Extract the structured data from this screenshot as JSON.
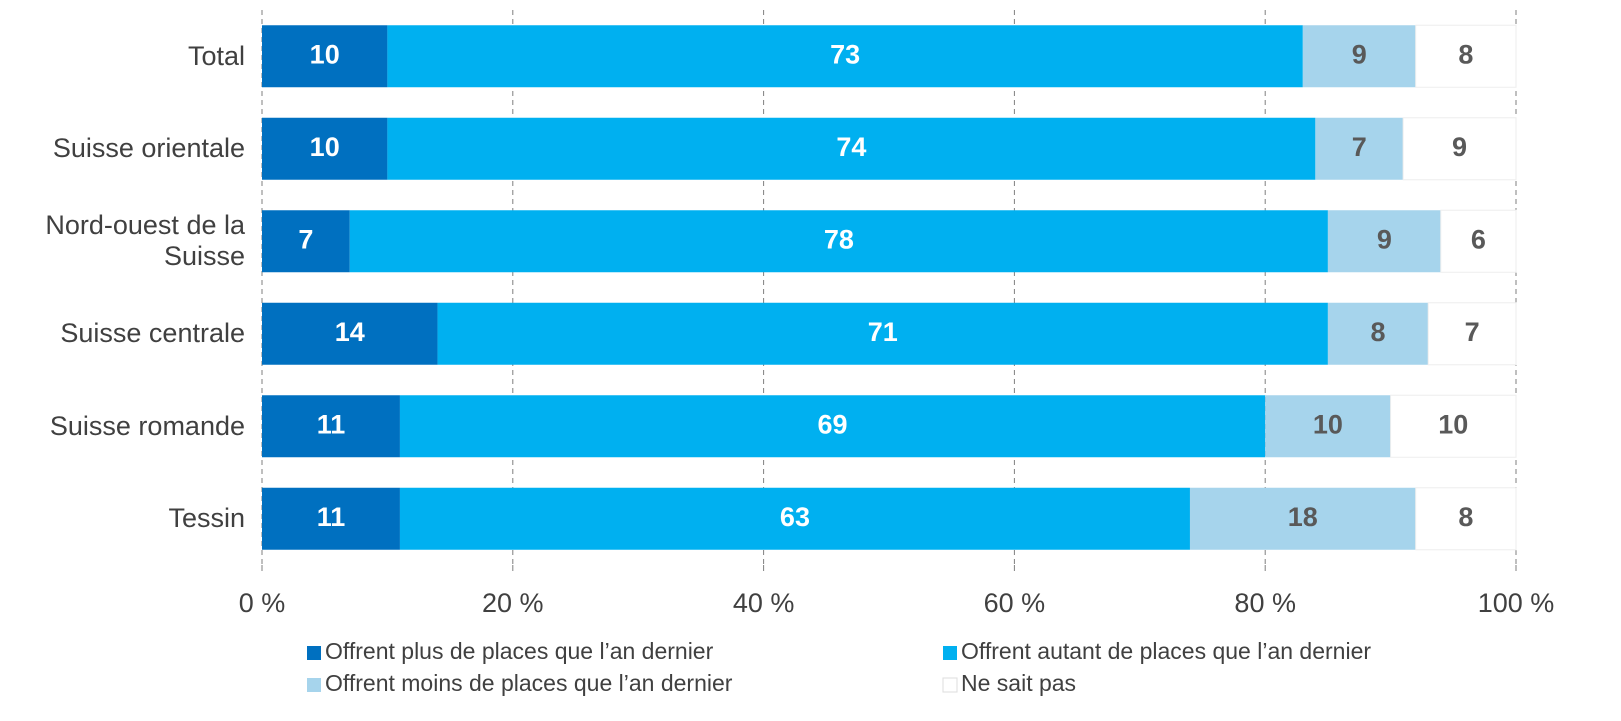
{
  "chart_data": {
    "type": "stacked-bar-horizontal",
    "categories": [
      "Total",
      "Suisse orientale",
      "Nord-ouest de la Suisse",
      "Suisse centrale",
      "Suisse romande",
      "Tessin"
    ],
    "series": [
      {
        "name": "Offrent plus de places que l’an dernier",
        "color": "#0070c0",
        "values": [
          10,
          10,
          7,
          14,
          11,
          11
        ]
      },
      {
        "name": "Offrent autant de places que l’an dernier",
        "color": "#00b0f0",
        "values": [
          73,
          74,
          78,
          71,
          69,
          63
        ]
      },
      {
        "name": "Offrent moins de places que l’an dernier",
        "color": "#a6d4ec",
        "values": [
          9,
          7,
          9,
          8,
          10,
          18
        ]
      },
      {
        "name": "Ne sait pas",
        "color": "#ffffff",
        "values": [
          8,
          9,
          6,
          7,
          10,
          8
        ]
      }
    ],
    "xlim": [
      0,
      100
    ],
    "xticks": [
      {
        "value": 0,
        "label": "0 %"
      },
      {
        "value": 20,
        "label": "20 %"
      },
      {
        "value": 40,
        "label": "40 %"
      },
      {
        "value": 60,
        "label": "60 %"
      },
      {
        "value": 80,
        "label": "80 %"
      },
      {
        "value": 100,
        "label": "100 %"
      }
    ],
    "grid": true,
    "legend": "bottom"
  }
}
